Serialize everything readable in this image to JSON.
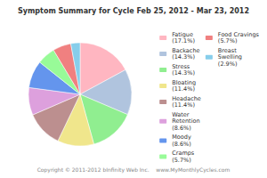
{
  "chart_data": {
    "type": "pie",
    "title": "Symptom Summary for Cycle Feb 25, 2012 - Mar 23, 2012",
    "categories": [
      "Fatigue\n(17.1%)",
      "Backache\n(14.3%)",
      "Stress\n(14.3%)",
      "Bloating\n(11.4%)",
      "Headache\n(11.4%)",
      "Water\nRetention\n(8.6%)",
      "Moody\n(8.6%)",
      "Cramps\n(5.7%)",
      "Food Cravings\n(5.7%)",
      "Breast\nSwelling\n(2.9%)"
    ],
    "values": [
      17.1,
      14.3,
      14.3,
      11.4,
      11.4,
      8.6,
      8.6,
      5.7,
      5.7,
      2.9
    ],
    "colors": [
      "#FFB6C1",
      "#B0C4DE",
      "#90EE90",
      "#F0E68C",
      "#BC8F8F",
      "#DDA0DD",
      "#6495ED",
      "#98FB98",
      "#F08080",
      "#87CEEB"
    ],
    "legend": "right",
    "annotations": [
      "Copyright © 2011-2012 bInfinity Web Inc.    www.MyMonthlyCycles.com"
    ]
  }
}
